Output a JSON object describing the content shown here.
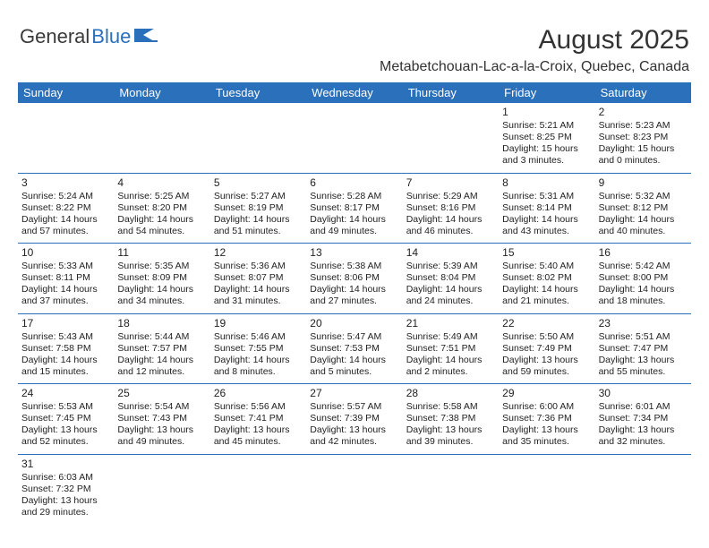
{
  "logo": {
    "text1": "General",
    "text2": "Blue"
  },
  "title": "August 2025",
  "location": "Metabetchouan-Lac-a-la-Croix, Quebec, Canada",
  "colors": {
    "header_bg": "#2a70bb",
    "header_fg": "#ffffff",
    "text": "#222222",
    "rule": "#2a70bb"
  },
  "day_names": [
    "Sunday",
    "Monday",
    "Tuesday",
    "Wednesday",
    "Thursday",
    "Friday",
    "Saturday"
  ],
  "weeks": [
    [
      null,
      null,
      null,
      null,
      null,
      {
        "d": "1",
        "sr": "5:21 AM",
        "ss": "8:25 PM",
        "dh": "15",
        "dm": "3"
      },
      {
        "d": "2",
        "sr": "5:23 AM",
        "ss": "8:23 PM",
        "dh": "15",
        "dm": "0"
      }
    ],
    [
      {
        "d": "3",
        "sr": "5:24 AM",
        "ss": "8:22 PM",
        "dh": "14",
        "dm": "57"
      },
      {
        "d": "4",
        "sr": "5:25 AM",
        "ss": "8:20 PM",
        "dh": "14",
        "dm": "54"
      },
      {
        "d": "5",
        "sr": "5:27 AM",
        "ss": "8:19 PM",
        "dh": "14",
        "dm": "51"
      },
      {
        "d": "6",
        "sr": "5:28 AM",
        "ss": "8:17 PM",
        "dh": "14",
        "dm": "49"
      },
      {
        "d": "7",
        "sr": "5:29 AM",
        "ss": "8:16 PM",
        "dh": "14",
        "dm": "46"
      },
      {
        "d": "8",
        "sr": "5:31 AM",
        "ss": "8:14 PM",
        "dh": "14",
        "dm": "43"
      },
      {
        "d": "9",
        "sr": "5:32 AM",
        "ss": "8:12 PM",
        "dh": "14",
        "dm": "40"
      }
    ],
    [
      {
        "d": "10",
        "sr": "5:33 AM",
        "ss": "8:11 PM",
        "dh": "14",
        "dm": "37"
      },
      {
        "d": "11",
        "sr": "5:35 AM",
        "ss": "8:09 PM",
        "dh": "14",
        "dm": "34"
      },
      {
        "d": "12",
        "sr": "5:36 AM",
        "ss": "8:07 PM",
        "dh": "14",
        "dm": "31"
      },
      {
        "d": "13",
        "sr": "5:38 AM",
        "ss": "8:06 PM",
        "dh": "14",
        "dm": "27"
      },
      {
        "d": "14",
        "sr": "5:39 AM",
        "ss": "8:04 PM",
        "dh": "14",
        "dm": "24"
      },
      {
        "d": "15",
        "sr": "5:40 AM",
        "ss": "8:02 PM",
        "dh": "14",
        "dm": "21"
      },
      {
        "d": "16",
        "sr": "5:42 AM",
        "ss": "8:00 PM",
        "dh": "14",
        "dm": "18"
      }
    ],
    [
      {
        "d": "17",
        "sr": "5:43 AM",
        "ss": "7:58 PM",
        "dh": "14",
        "dm": "15"
      },
      {
        "d": "18",
        "sr": "5:44 AM",
        "ss": "7:57 PM",
        "dh": "14",
        "dm": "12"
      },
      {
        "d": "19",
        "sr": "5:46 AM",
        "ss": "7:55 PM",
        "dh": "14",
        "dm": "8"
      },
      {
        "d": "20",
        "sr": "5:47 AM",
        "ss": "7:53 PM",
        "dh": "14",
        "dm": "5"
      },
      {
        "d": "21",
        "sr": "5:49 AM",
        "ss": "7:51 PM",
        "dh": "14",
        "dm": "2"
      },
      {
        "d": "22",
        "sr": "5:50 AM",
        "ss": "7:49 PM",
        "dh": "13",
        "dm": "59"
      },
      {
        "d": "23",
        "sr": "5:51 AM",
        "ss": "7:47 PM",
        "dh": "13",
        "dm": "55"
      }
    ],
    [
      {
        "d": "24",
        "sr": "5:53 AM",
        "ss": "7:45 PM",
        "dh": "13",
        "dm": "52"
      },
      {
        "d": "25",
        "sr": "5:54 AM",
        "ss": "7:43 PM",
        "dh": "13",
        "dm": "49"
      },
      {
        "d": "26",
        "sr": "5:56 AM",
        "ss": "7:41 PM",
        "dh": "13",
        "dm": "45"
      },
      {
        "d": "27",
        "sr": "5:57 AM",
        "ss": "7:39 PM",
        "dh": "13",
        "dm": "42"
      },
      {
        "d": "28",
        "sr": "5:58 AM",
        "ss": "7:38 PM",
        "dh": "13",
        "dm": "39"
      },
      {
        "d": "29",
        "sr": "6:00 AM",
        "ss": "7:36 PM",
        "dh": "13",
        "dm": "35"
      },
      {
        "d": "30",
        "sr": "6:01 AM",
        "ss": "7:34 PM",
        "dh": "13",
        "dm": "32"
      }
    ],
    [
      {
        "d": "31",
        "sr": "6:03 AM",
        "ss": "7:32 PM",
        "dh": "13",
        "dm": "29"
      },
      null,
      null,
      null,
      null,
      null,
      null
    ]
  ],
  "labels": {
    "sunrise": "Sunrise:",
    "sunset": "Sunset:",
    "daylight": "Daylight:",
    "hours": "hours",
    "and": "and",
    "minutes": "minutes."
  }
}
